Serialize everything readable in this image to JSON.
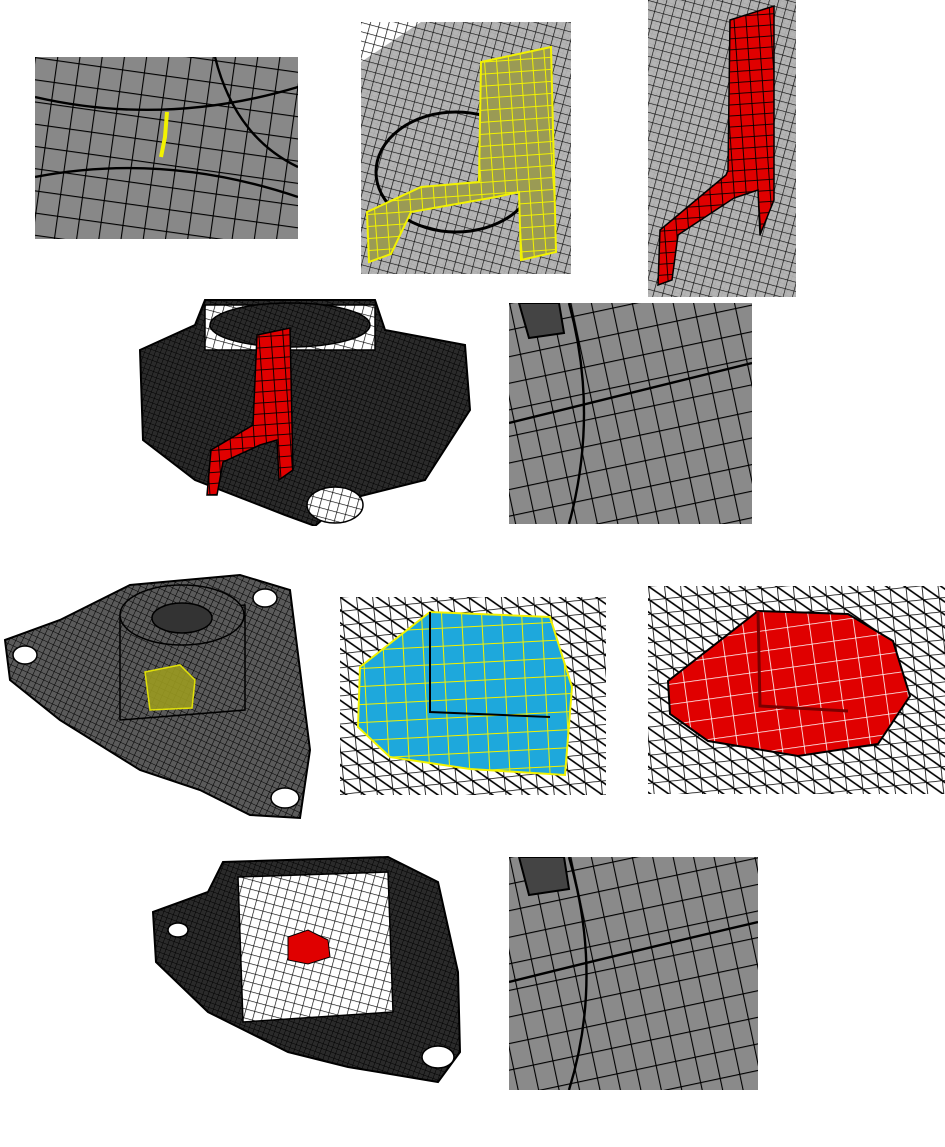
{
  "colors": {
    "background": "#ffffff",
    "mesh_surface": "#888888",
    "mesh_line": "#000000",
    "highlight_yellow": "#f2f200",
    "highlight_red": "#e00000",
    "highlight_cyan": "#1ea8dc"
  },
  "panels": [
    {
      "id": "panel-1",
      "view": "surface-mesh-closeup",
      "highlight": "yellow-edge"
    },
    {
      "id": "panel-2",
      "view": "wireframe-closeup",
      "highlight": "yellow-sheet"
    },
    {
      "id": "panel-3",
      "view": "wireframe-closeup",
      "highlight": "red-sheet"
    },
    {
      "id": "panel-4",
      "view": "full-part-wireframe",
      "highlight": "red-sheet"
    },
    {
      "id": "panel-5",
      "view": "surface-mesh-closeup",
      "highlight": "none"
    },
    {
      "id": "panel-6",
      "view": "full-part-surface-mesh",
      "highlight": "yellow-patch"
    },
    {
      "id": "panel-7",
      "view": "wireframe-closeup",
      "highlight": "cyan-sheet"
    },
    {
      "id": "panel-8",
      "view": "wireframe-closeup",
      "highlight": "red-block"
    },
    {
      "id": "panel-9",
      "view": "full-part-wireframe",
      "highlight": "red-block"
    },
    {
      "id": "panel-10",
      "view": "surface-mesh-closeup",
      "highlight": "none"
    }
  ]
}
